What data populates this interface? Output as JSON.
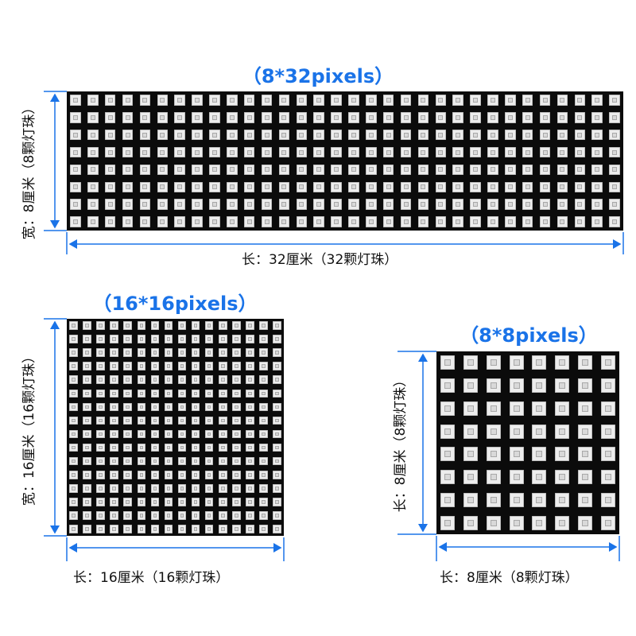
{
  "accent_color": "#1a73e8",
  "panels": {
    "p8x32": {
      "title": "（8*32pixels）",
      "rows": 8,
      "cols": 32,
      "width_label": "宽：8厘米（8颗灯珠）",
      "length_label": "长：32厘米（32颗灯珠）"
    },
    "p16x16": {
      "title": "（16*16pixels）",
      "rows": 16,
      "cols": 16,
      "width_label": "宽：16厘米（16颗灯珠）",
      "length_label": "长：16厘米（16颗灯珠）"
    },
    "p8x8": {
      "title": "（8*8pixels）",
      "rows": 8,
      "cols": 8,
      "width_label": "长：8厘米（8颗灯珠）",
      "length_label": "长：8厘米（8颗灯珠）"
    }
  }
}
